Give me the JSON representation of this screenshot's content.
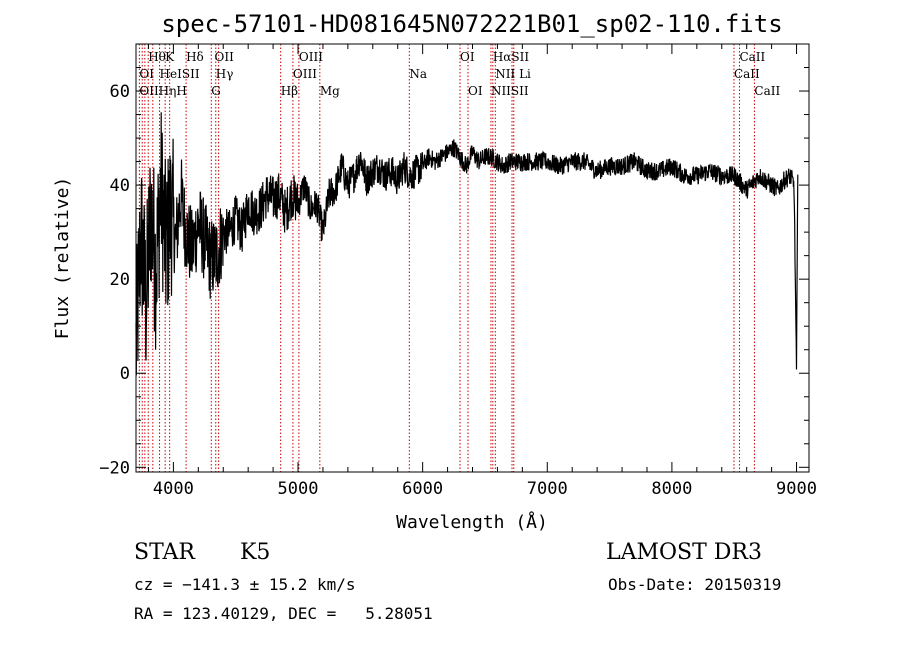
{
  "chart_data": {
    "type": "line",
    "title": "spec-57101-HD081645N072221B01_sp02-110.fits",
    "xlabel": "Wavelength (Å)",
    "ylabel": "Flux (relative)",
    "xlim": [
      3700,
      9100
    ],
    "ylim": [
      -21,
      70
    ],
    "xticks": [
      4000,
      5000,
      6000,
      7000,
      8000,
      9000
    ],
    "yticks": [
      -20,
      0,
      20,
      40,
      60
    ],
    "series": [
      {
        "name": "flux",
        "x": [
          3700,
          3740,
          3780,
          3820,
          3860,
          3900,
          3940,
          3980,
          4020,
          4060,
          4100,
          4150,
          4200,
          4250,
          4300,
          4350,
          4400,
          4450,
          4500,
          4550,
          4600,
          4650,
          4700,
          4750,
          4800,
          4850,
          4900,
          4950,
          5000,
          5050,
          5100,
          5150,
          5200,
          5250,
          5300,
          5350,
          5400,
          5450,
          5500,
          5550,
          5600,
          5650,
          5700,
          5750,
          5800,
          5850,
          5900,
          5950,
          6000,
          6050,
          6100,
          6150,
          6200,
          6250,
          6300,
          6350,
          6400,
          6450,
          6500,
          6550,
          6600,
          6650,
          6700,
          6750,
          6800,
          6900,
          7000,
          7100,
          7200,
          7300,
          7400,
          7500,
          7600,
          7700,
          7800,
          7900,
          8000,
          8100,
          8200,
          8300,
          8400,
          8500,
          8600,
          8700,
          8800,
          8850,
          8900,
          8950,
          8980,
          9000,
          9010
        ],
        "y": [
          5,
          30,
          15,
          35,
          22,
          40,
          26,
          35,
          28,
          38,
          30,
          26,
          32,
          28,
          24,
          25,
          30,
          30,
          33,
          30,
          36,
          34,
          35,
          38,
          37,
          38,
          34,
          38,
          36,
          40,
          35,
          36,
          30,
          38,
          39,
          44,
          40,
          42,
          46,
          41,
          43,
          44,
          42,
          43,
          41,
          44,
          42,
          43,
          44,
          46,
          45,
          46,
          47,
          48,
          46,
          44,
          47,
          45,
          46,
          46,
          45,
          44,
          45,
          45,
          45,
          45,
          45,
          44,
          45,
          45,
          43,
          44,
          44,
          45,
          43,
          43,
          44,
          42,
          42,
          43,
          42,
          42,
          39,
          42,
          40,
          39,
          41,
          42,
          40,
          0,
          44
        ]
      }
    ],
    "spectral_lines": [
      {
        "label": "Hθ",
        "x": 3798,
        "row": 1
      },
      {
        "label": "K",
        "x": 3934,
        "row": 1
      },
      {
        "label": "Hδ",
        "x": 4102,
        "row": 1
      },
      {
        "label": "OII",
        "x": 4330,
        "row": 1
      },
      {
        "label": "OIII",
        "x": 5007,
        "row": 1
      },
      {
        "label": "OI",
        "x": 6300,
        "row": 1
      },
      {
        "label": "HαSII",
        "x": 6563,
        "row": 1
      },
      {
        "label": "CaII",
        "x": 8542,
        "row": 1
      },
      {
        "label": "OI",
        "x": 3727,
        "row": 2
      },
      {
        "label": "HeISII",
        "x": 3889,
        "row": 2
      },
      {
        "label": "Hγ",
        "x": 4340,
        "row": 2
      },
      {
        "label": "OIII",
        "x": 4959,
        "row": 2
      },
      {
        "label": "Na",
        "x": 5893,
        "row": 2
      },
      {
        "label": "NII Li",
        "x": 6583,
        "row": 2
      },
      {
        "label": "CaII",
        "x": 8498,
        "row": 2
      },
      {
        "label": "OIIHηH",
        "x": 3727,
        "row": 3
      },
      {
        "label": "G",
        "x": 4304,
        "row": 3
      },
      {
        "label": "Hβ",
        "x": 4861,
        "row": 3
      },
      {
        "label": "Mg",
        "x": 5175,
        "row": 3
      },
      {
        "label": "OI",
        "x": 6364,
        "row": 3
      },
      {
        "label": "NIISII",
        "x": 6548,
        "row": 3
      },
      {
        "label": "CaII",
        "x": 8662,
        "row": 3
      }
    ],
    "line_markers": [
      3727,
      3750,
      3771,
      3798,
      3835,
      3889,
      3934,
      3970,
      4102,
      4304,
      4340,
      4363,
      4861,
      4959,
      5007,
      5175,
      5893,
      6300,
      6364,
      6548,
      6563,
      6583,
      6717,
      6731,
      8498,
      8542,
      8662
    ],
    "colors": {
      "axis": "#000000",
      "spectrum": "#000000",
      "line_marker": "#cc0000"
    }
  },
  "info": {
    "object_type": "STAR",
    "subclass": "K5",
    "survey": "LAMOST DR3",
    "redshift": "cz = −141.3 ± 15.2 km/s",
    "obs_date": "Obs-Date: 20150319",
    "coords": "RA = 123.40129, DEC =   5.28051"
  }
}
